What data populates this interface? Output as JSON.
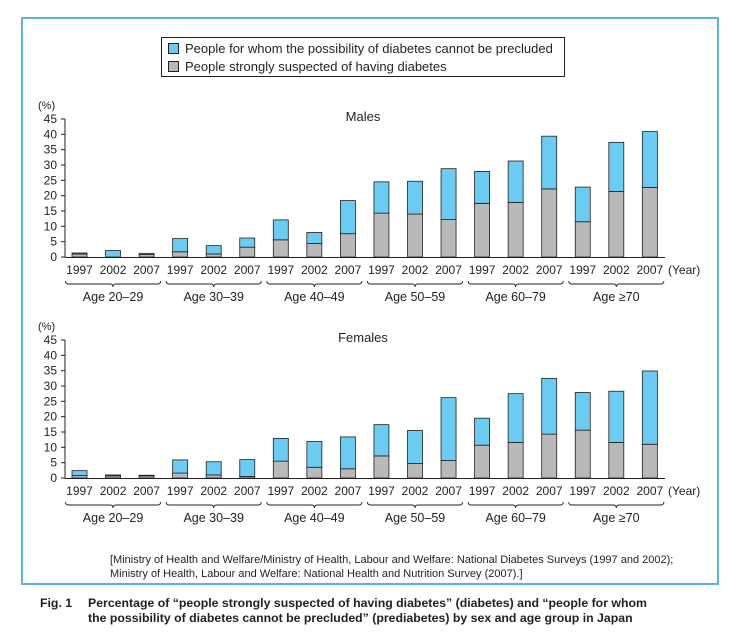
{
  "legend": {
    "prediabetes_label": "People for whom the possibility of diabetes cannot be precluded",
    "diabetes_label": "People strongly suspected of having diabetes"
  },
  "colors": {
    "prediabetes": "#6ccbf0",
    "diabetes": "#b9b9bb",
    "frame": "#5ab4dc",
    "ink": "#231f20"
  },
  "source": {
    "line1": "[Ministry of Health and Welfare/Ministry of Health, Labour and Welfare: National Diabetes Surveys (1997 and 2002);",
    "line2": "Ministry of Health, Labour and Welfare: National Health and Nutrition Survey (2007).]"
  },
  "caption": {
    "number": "Fig. 1",
    "line1": "Percentage of “people strongly suspected of having diabetes” (diabetes) and “people for whom",
    "line2": "the possibility of diabetes cannot be precluded” (prediabetes) by sex and age group in Japan"
  },
  "chart_data": [
    {
      "type": "bar",
      "stacked": true,
      "title": "Males",
      "ylabel": "(%)",
      "xlabel": "(Year)",
      "ylim": [
        0,
        45
      ],
      "yticks": [
        0,
        5,
        10,
        15,
        20,
        25,
        30,
        35,
        40,
        45
      ],
      "grid": false,
      "legend": "top-center",
      "categories": [
        "1997",
        "2002",
        "2007",
        "1997",
        "2002",
        "2007",
        "1997",
        "2002",
        "2007",
        "1997",
        "2002",
        "2007",
        "1997",
        "2002",
        "2007",
        "1997",
        "2002",
        "2007"
      ],
      "groups": [
        "Age 20–29",
        "Age 30–39",
        "Age 40–49",
        "Age 50–59",
        "Age 60–79",
        "Age ≥70"
      ],
      "series": [
        {
          "name": "People strongly suspected of having diabetes",
          "values": [
            1.0,
            0.0,
            0.8,
            1.7,
            1.0,
            3.2,
            5.6,
            4.4,
            7.6,
            14.3,
            14.0,
            12.2,
            17.5,
            17.8,
            22.2,
            11.5,
            21.4,
            22.7
          ]
        },
        {
          "name": "People for whom the possibility of diabetes cannot be precluded",
          "values": [
            0.3,
            2.1,
            0.4,
            4.3,
            2.7,
            3.0,
            6.5,
            3.6,
            10.8,
            10.2,
            10.7,
            16.6,
            10.4,
            13.5,
            17.2,
            11.3,
            16.0,
            18.2
          ]
        }
      ]
    },
    {
      "type": "bar",
      "stacked": true,
      "title": "Females",
      "ylabel": "(%)",
      "xlabel": "(Year)",
      "ylim": [
        0,
        45
      ],
      "yticks": [
        0,
        5,
        10,
        15,
        20,
        25,
        30,
        35,
        40,
        45
      ],
      "grid": false,
      "legend": "top-center",
      "categories": [
        "1997",
        "2002",
        "2007",
        "1997",
        "2002",
        "2007",
        "1997",
        "2002",
        "2007",
        "1997",
        "2002",
        "2007",
        "1997",
        "2002",
        "2007",
        "1997",
        "2002",
        "2007"
      ],
      "groups": [
        "Age 20–29",
        "Age 30–39",
        "Age 40–49",
        "Age 50–59",
        "Age 60–79",
        "Age ≥70"
      ],
      "series": [
        {
          "name": "People strongly suspected of having diabetes",
          "values": [
            0.8,
            0.7,
            0.7,
            1.6,
            1.0,
            0.5,
            5.5,
            3.5,
            3.0,
            7.2,
            4.7,
            5.7,
            10.7,
            11.6,
            14.3,
            15.6,
            11.6,
            11.0
          ]
        },
        {
          "name": "People for whom the possibility of diabetes cannot be precluded",
          "values": [
            1.6,
            0.3,
            0.2,
            4.3,
            4.3,
            5.5,
            7.4,
            8.4,
            10.4,
            10.2,
            10.8,
            20.5,
            8.8,
            15.9,
            18.2,
            12.3,
            16.7,
            23.9
          ]
        }
      ]
    }
  ]
}
